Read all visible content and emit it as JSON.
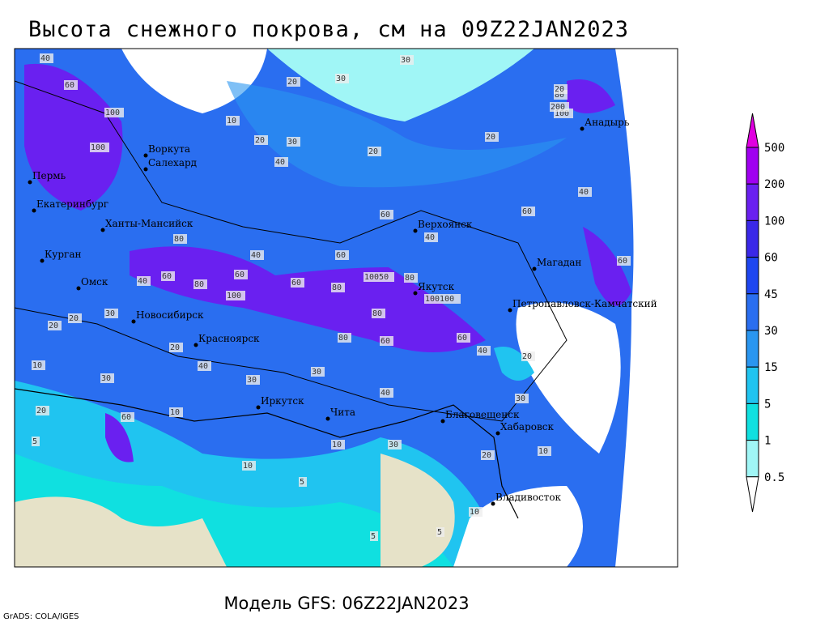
{
  "header": {
    "title": "Высота снежного покрова, см на 09Z22JAN2023"
  },
  "cities": [
    "Воркута",
    "Салехард",
    "Пермь",
    "Екатеринбург",
    "Ханты-Мансийск",
    "Курган",
    "Омск",
    "Новосибирск",
    "Красноярск",
    "Иркутск",
    "Чита",
    "Верхоянск",
    "Якутск",
    "Магадан",
    "Анадырь",
    "Петропавловск-Камчатский",
    "Благовещенск",
    "Хабаровск",
    "Владивосток"
  ],
  "contour_labels": [
    "40",
    "60",
    "100",
    "100",
    "30",
    "30",
    "10",
    "20",
    "20",
    "20",
    "30",
    "20",
    "40",
    "60",
    "100",
    "60",
    "40",
    "80",
    "60",
    "80",
    "100",
    "40",
    "60",
    "80",
    "60",
    "10050",
    "80",
    "100100",
    "80",
    "60",
    "40",
    "60",
    "30",
    "20",
    "40",
    "30",
    "20",
    "10",
    "10",
    "5",
    "20",
    "30",
    "10",
    "5",
    "10",
    "5",
    "30",
    "40",
    "60",
    "80",
    "200",
    "20",
    "60",
    "40",
    "20",
    "10",
    "5",
    "30",
    "20",
    "10",
    "40",
    "60",
    "80",
    "30",
    "20"
  ],
  "legend": {
    "levels": [
      500,
      200,
      100,
      60,
      45,
      30,
      15,
      5,
      1,
      0.5
    ],
    "colors": [
      "#e000e0",
      "#a000f0",
      "#6a20f0",
      "#3a28e8",
      "#1e46f0",
      "#2a6ef0",
      "#2a96f0",
      "#20c4f0",
      "#10e0e0",
      "#a0f6f6",
      "#ffffff"
    ]
  },
  "footer": {
    "model": "Модель GFS: 06Z22JAN2023",
    "credit": "GrADS: COLA/IGES"
  }
}
